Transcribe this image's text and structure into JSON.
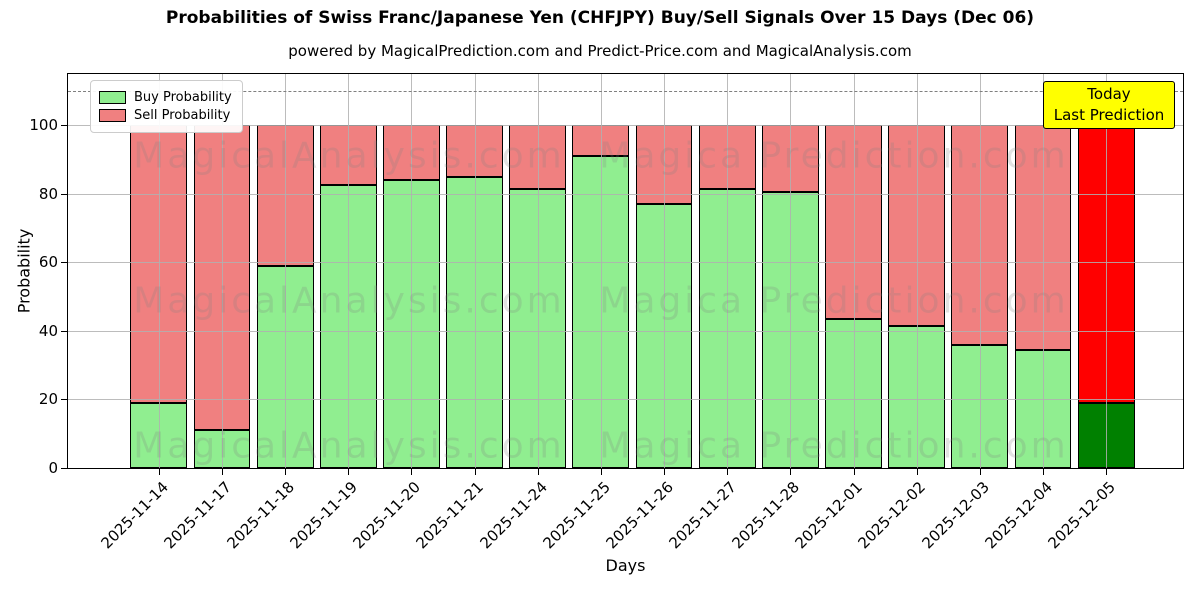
{
  "title": "Probabilities of Swiss Franc/Japanese Yen (CHFJPY) Buy/Sell Signals Over 15 Days (Dec 06)",
  "subtitle": "powered by MagicalPrediction.com and Predict-Price.com and MagicalAnalysis.com",
  "legend": {
    "items": [
      {
        "label": "Buy Probability",
        "color": "#90EE90"
      },
      {
        "label": "Sell Probability",
        "color": "#F08080"
      }
    ]
  },
  "annotation_box": {
    "line1": "Today",
    "line2": "Last Prediction",
    "bg_color": "#FFFF00",
    "border_color": "#000000"
  },
  "watermarks": {
    "left_text": "MagicalAnalysis.com",
    "right_text": "Magica Prediction.com",
    "rows": 3
  },
  "chart_data": {
    "type": "bar",
    "stacked": true,
    "categories": [
      "2025-11-14",
      "2025-11-17",
      "2025-11-18",
      "2025-11-19",
      "2025-11-20",
      "2025-11-21",
      "2025-11-24",
      "2025-11-25",
      "2025-11-26",
      "2025-11-27",
      "2025-11-28",
      "2025-12-01",
      "2025-12-02",
      "2025-12-03",
      "2025-12-04",
      "2025-12-05"
    ],
    "series": [
      {
        "name": "Buy Probability",
        "color": "#90EE90",
        "values": [
          19,
          11,
          59,
          82.5,
          84,
          85,
          81.5,
          91,
          77,
          81.5,
          80.5,
          43.5,
          41.5,
          36,
          34.5,
          19
        ]
      },
      {
        "name": "Sell Probability",
        "color": "#F08080",
        "values": [
          81,
          89,
          41,
          17.5,
          16,
          15,
          18.5,
          9,
          23,
          18.5,
          19.5,
          56.5,
          58.5,
          64,
          65.5,
          81
        ]
      }
    ],
    "highlight_last_bar": {
      "buy_color": "#008000",
      "sell_color": "#FF0000"
    },
    "bar_edge_color": "#000000",
    "xlabel": "Days",
    "ylabel": "Probability",
    "yticks": [
      0,
      20,
      40,
      60,
      80,
      100
    ],
    "ylim": [
      0,
      115
    ],
    "dashed_line_y": 110,
    "grid": true,
    "legend_position": "upper-left"
  }
}
